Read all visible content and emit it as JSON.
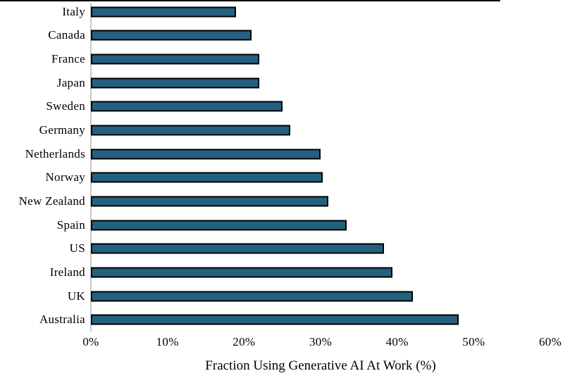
{
  "chart_data": {
    "type": "bar",
    "orientation": "horizontal",
    "title": "",
    "xlabel": "Fraction Using Generative AI At Work (%)",
    "ylabel": "",
    "categories": [
      "Italy",
      "Canada",
      "France",
      "Japan",
      "Sweden",
      "Germany",
      "Netherlands",
      "Norway",
      "New Zealand",
      "Spain",
      "US",
      "Ireland",
      "UK",
      "Australia"
    ],
    "values": [
      19,
      21,
      22,
      22,
      25,
      26,
      30,
      30.3,
      31,
      33.4,
      38.3,
      39.4,
      42.1,
      48
    ],
    "xlim": [
      0,
      60
    ],
    "x_ticks": [
      {
        "value": 0,
        "label": "0%"
      },
      {
        "value": 10,
        "label": "10%"
      },
      {
        "value": 20,
        "label": "20%"
      },
      {
        "value": 30,
        "label": "30%"
      },
      {
        "value": 40,
        "label": "40%"
      },
      {
        "value": 50,
        "label": "50%"
      },
      {
        "value": 60,
        "label": "60%"
      }
    ],
    "grid": false,
    "legend": "none",
    "bar_color": "#23617f",
    "bar_border_color": "#000000",
    "axis_line_color": "#c9c9c9"
  }
}
